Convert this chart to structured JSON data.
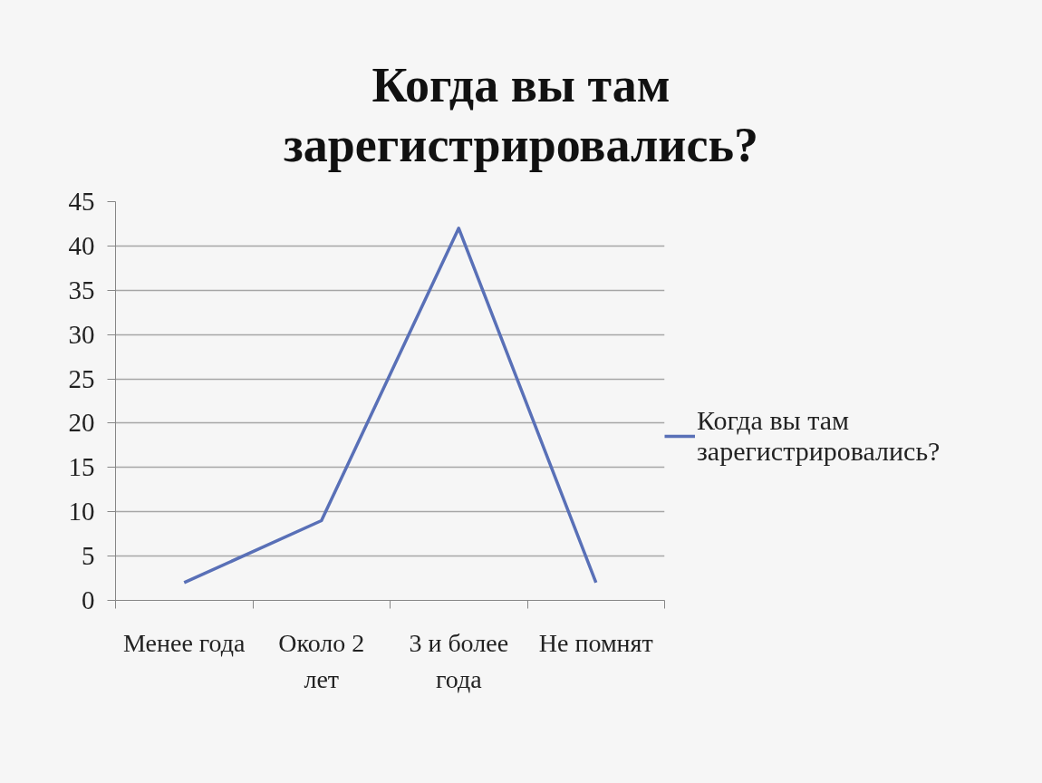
{
  "chart_data": {
    "type": "line",
    "title": "Когда вы там зарегистрировались?",
    "categories": [
      "Менее года",
      "Около 2 лет",
      "3 и более года",
      "Не помнят"
    ],
    "series": [
      {
        "name": "Когда вы там зарегистрировались?",
        "color": "#5970b7",
        "values": [
          2,
          9,
          42,
          2
        ]
      }
    ],
    "ylim": [
      0,
      45
    ],
    "yticks": [
      0,
      5,
      10,
      15,
      20,
      25,
      30,
      35,
      40,
      45
    ],
    "grid": "y",
    "legend": "right",
    "line_style": "solid"
  }
}
